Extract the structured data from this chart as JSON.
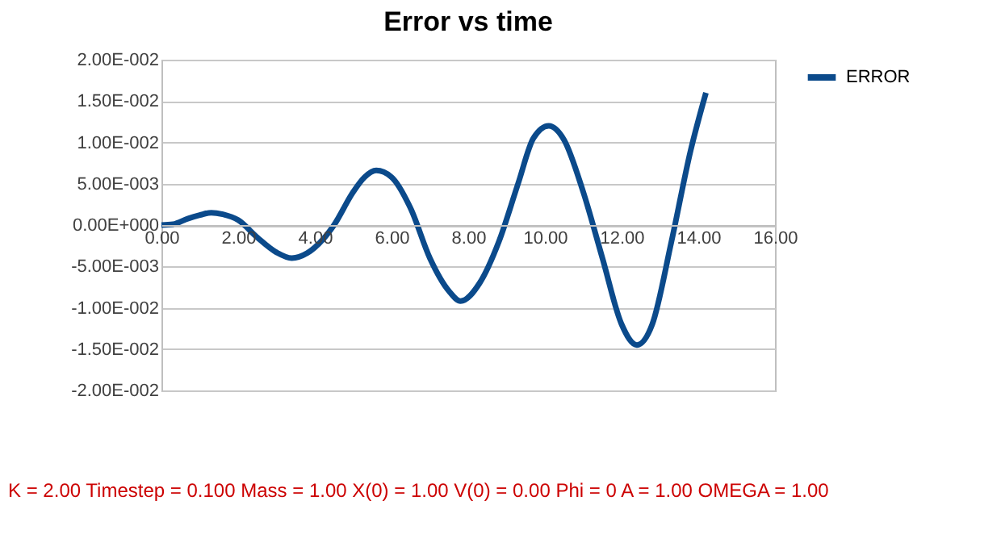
{
  "chart_data": {
    "type": "line",
    "title": "Error vs time",
    "series": [
      {
        "name": "ERROR",
        "color": "#0b4a8b",
        "x": [
          0,
          0.3,
          0.7,
          1.0,
          1.3,
          1.6,
          2.0,
          2.5,
          3.0,
          3.4,
          3.8,
          4.2,
          4.5,
          5.0,
          5.3,
          5.6,
          6.0,
          6.5,
          7.0,
          7.5,
          7.8,
          8.3,
          8.8,
          9.3,
          9.7,
          10.1,
          10.5,
          11.0,
          11.5,
          12.0,
          12.4,
          12.8,
          13.3,
          13.8,
          14.2
        ],
        "values": [
          0,
          0.0001,
          0.0008,
          0.0012,
          0.0015,
          0.0013,
          0.0006,
          -0.0015,
          -0.0033,
          -0.004,
          -0.0034,
          -0.0018,
          0,
          0.004,
          0.0058,
          0.0066,
          0.0058,
          0.002,
          -0.004,
          -0.008,
          -0.0092,
          -0.007,
          -0.002,
          0.005,
          0.0105,
          0.012,
          0.0103,
          0.004,
          -0.004,
          -0.012,
          -0.0145,
          -0.012,
          -0.002,
          0.009,
          0.016
        ]
      }
    ],
    "xlim": [
      0,
      16
    ],
    "xticks": [
      {
        "value": 0,
        "label": "0.00"
      },
      {
        "value": 2,
        "label": "2.00"
      },
      {
        "value": 4,
        "label": "4.00"
      },
      {
        "value": 6,
        "label": "6.00"
      },
      {
        "value": 8,
        "label": "8.00"
      },
      {
        "value": 10,
        "label": "10.00"
      },
      {
        "value": 12,
        "label": "12.00"
      },
      {
        "value": 14,
        "label": "14.00"
      },
      {
        "value": 16,
        "label": "16.00"
      }
    ],
    "ylim": [
      -0.02,
      0.02
    ],
    "yticks": [
      {
        "value": -0.02,
        "label": "-2.00E-002"
      },
      {
        "value": -0.015,
        "label": "-1.50E-002"
      },
      {
        "value": -0.01,
        "label": "-1.00E-002"
      },
      {
        "value": -0.005,
        "label": "-5.00E-003"
      },
      {
        "value": 0,
        "label": "0.00E+000"
      },
      {
        "value": 0.005,
        "label": "5.00E-003"
      },
      {
        "value": 0.01,
        "label": "1.00E-002"
      },
      {
        "value": 0.015,
        "label": "1.50E-002"
      },
      {
        "value": 0.02,
        "label": "2.00E-002"
      }
    ],
    "grid": "y",
    "legend": "right",
    "marker": "none",
    "line_style": "solid",
    "annotations": [
      "K = 2.00 Timestep = 0.100 Mass = 1.00 X(0) = 1.00 V(0) = 0.00 Phi = 0 A = 1.00 OMEGA = 1.00"
    ]
  }
}
